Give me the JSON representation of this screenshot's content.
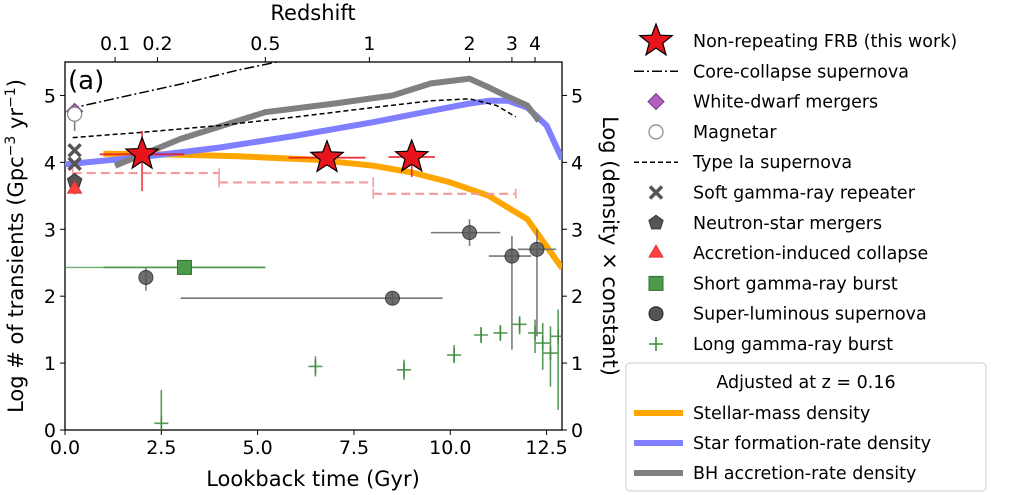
{
  "chart_data": {
    "type": "scatter",
    "panel_label": "(a)",
    "xlabel_bottom": "Lookback time (Gyr)",
    "xlabel_top": "Redshift",
    "ylabel_left": "Log # of transients (Gpc^-3 yr^-1)",
    "ylabel_right": "Log (density × constant)",
    "xlim": [
      0,
      12.9
    ],
    "ylim": [
      0,
      5.5
    ],
    "x_ticks": [
      0.0,
      2.5,
      5.0,
      7.5,
      10.0,
      12.5
    ],
    "x_tick_labels": [
      "0.0",
      "2.5",
      "5.0",
      "7.5",
      "10.0",
      "12.5"
    ],
    "y_ticks": [
      0,
      1,
      2,
      3,
      4,
      5
    ],
    "y_tick_labels": [
      "0",
      "1",
      "2",
      "3",
      "4",
      "5"
    ],
    "top_ticks": [
      {
        "label": "0.1",
        "lookback": 1.3
      },
      {
        "label": "0.2",
        "lookback": 2.4
      },
      {
        "label": "0.5",
        "lookback": 5.2
      },
      {
        "label": "1",
        "lookback": 7.9
      },
      {
        "label": "2",
        "lookback": 10.5
      },
      {
        "label": "3",
        "lookback": 11.6
      },
      {
        "label": "4",
        "lookback": 12.2
      }
    ],
    "legend_placement": "right, outside plot",
    "legend_title": "Adjusted at z = 0.16",
    "legend_entries": [
      {
        "key": "frb",
        "label": "Non-repeating FRB (this work)"
      },
      {
        "key": "ccsn",
        "label": "Core-collapse supernova"
      },
      {
        "key": "wd",
        "label": "White-dwarf mergers"
      },
      {
        "key": "mag",
        "label": "Magnetar"
      },
      {
        "key": "ia",
        "label": "Type Ia supernova"
      },
      {
        "key": "sgr",
        "label": "Soft gamma-ray repeater"
      },
      {
        "key": "ns",
        "label": "Neutron-star mergers"
      },
      {
        "key": "aic",
        "label": "Accretion-induced collapse"
      },
      {
        "key": "sgrb",
        "label": "Short gamma-ray burst"
      },
      {
        "key": "slsn",
        "label": "Super-luminous supernova"
      },
      {
        "key": "lgrb",
        "label": "Long gamma-ray burst"
      }
    ],
    "density_legend": [
      {
        "key": "smd",
        "label": "Stellar-mass density"
      },
      {
        "key": "sfrd",
        "label": "Star formation-rate density"
      },
      {
        "key": "bhard",
        "label": "BH accretion-rate density"
      }
    ],
    "colors": {
      "frb": "#e8141c",
      "smd": "#ffa500",
      "sfrd": "#7f7fff",
      "bhard": "#808080",
      "wd": "#b05fbf",
      "sgrb": "#4c9a4c",
      "slsn": "#555555",
      "lgrb": "#3a8a3a",
      "aic": "#ff5a5a",
      "frb_err": "#f49a9a"
    },
    "series": [
      {
        "name": "Stellar-mass density",
        "key": "smd",
        "kind": "line",
        "x": [
          1.0,
          2.5,
          4.5,
          6.5,
          8.0,
          9.0,
          10.0,
          11.0,
          12.0,
          12.9
        ],
        "y": [
          4.13,
          4.12,
          4.09,
          4.04,
          3.95,
          3.85,
          3.7,
          3.5,
          3.15,
          2.42
        ]
      },
      {
        "name": "Star formation-rate density",
        "key": "sfrd",
        "kind": "line",
        "x": [
          0.0,
          2.0,
          4.0,
          6.0,
          8.0,
          9.5,
          10.5,
          11.0,
          11.5,
          12.0,
          12.5,
          12.9
        ],
        "y": [
          3.97,
          4.08,
          4.22,
          4.4,
          4.6,
          4.77,
          4.88,
          4.92,
          4.92,
          4.82,
          4.55,
          4.05
        ]
      },
      {
        "name": "BH accretion-rate density",
        "key": "bhard",
        "kind": "line",
        "x": [
          1.3,
          3.0,
          5.2,
          7.0,
          8.5,
          9.5,
          10.5,
          11.0,
          11.5,
          12.0,
          12.3
        ],
        "y": [
          3.95,
          4.35,
          4.75,
          4.88,
          5.0,
          5.18,
          5.25,
          5.12,
          4.98,
          4.85,
          4.62
        ]
      },
      {
        "name": "Core-collapse supernova",
        "key": "ccsn",
        "kind": "dashdot",
        "x": [
          0.1,
          1.5,
          3.0,
          4.5,
          5.5
        ],
        "y": [
          4.8,
          4.98,
          5.17,
          5.38,
          5.5
        ]
      },
      {
        "name": "Type Ia supernova",
        "key": "ia",
        "kind": "dashed",
        "x": [
          0.2,
          2.0,
          4.0,
          6.0,
          8.0,
          9.5,
          10.5,
          11.2,
          11.7
        ],
        "y": [
          4.37,
          4.45,
          4.55,
          4.68,
          4.82,
          4.92,
          4.95,
          4.85,
          4.68
        ]
      },
      {
        "name": "Non-repeating FRB (this work)",
        "key": "frb",
        "kind": "star",
        "points": [
          {
            "x": 2.0,
            "y": 4.12,
            "xerr": 1.1,
            "yerr": [
              0.55,
              0.35
            ]
          },
          {
            "x": 6.8,
            "y": 4.07,
            "xerr": 1.0,
            "yerr": [
              0.12,
              0.12
            ]
          },
          {
            "x": 9.0,
            "y": 4.08,
            "xerr": 0.6,
            "yerr": [
              0.3,
              0.25
            ]
          }
        ]
      },
      {
        "name": "Non-repeating FRB lower limits",
        "key": "frb_err",
        "kind": "hdash",
        "points": [
          {
            "x1": 0.2,
            "x2": 4.0,
            "y": 3.84
          },
          {
            "x1": 4.0,
            "x2": 8.0,
            "y": 3.7
          },
          {
            "x1": 8.0,
            "x2": 11.7,
            "y": 3.53
          }
        ]
      },
      {
        "name": "White-dwarf mergers",
        "key": "wd",
        "kind": "diamond",
        "points": [
          {
            "x": 0.25,
            "y": 4.76
          }
        ]
      },
      {
        "name": "Magnetar",
        "key": "mag",
        "kind": "open-circle",
        "points": [
          {
            "x": 0.25,
            "y": 4.72,
            "yerr": [
              0.25,
              0.0
            ]
          }
        ]
      },
      {
        "name": "Soft gamma-ray repeater",
        "key": "sgr",
        "kind": "x",
        "points": [
          {
            "x": 0.25,
            "y": 4.18
          },
          {
            "x": 0.25,
            "y": 3.98
          }
        ]
      },
      {
        "name": "Neutron-star mergers",
        "key": "ns",
        "kind": "pentagon",
        "points": [
          {
            "x": 0.25,
            "y": 3.72,
            "yerr": [
              0.2,
              0.12
            ]
          }
        ]
      },
      {
        "name": "Accretion-induced collapse",
        "key": "aic",
        "kind": "triangle",
        "points": [
          {
            "x": 0.25,
            "y": 3.6
          }
        ]
      },
      {
        "name": "Short gamma-ray burst",
        "key": "sgrb",
        "kind": "square",
        "points": [
          {
            "x": 3.1,
            "y": 2.43,
            "xerr": 2.1
          }
        ],
        "extra_segments": [
          {
            "x1": 0.0,
            "x2": 5.2,
            "y": 2.43
          }
        ]
      },
      {
        "name": "Super-luminous supernova",
        "key": "slsn",
        "kind": "circle",
        "points": [
          {
            "x": 2.1,
            "y": 2.28,
            "yerr": [
              0.2,
              0.15
            ],
            "xerr": 0.0
          },
          {
            "x": 8.5,
            "y": 1.97,
            "xerr1": 5.5,
            "xerr2": 1.3,
            "yerr": [
              0.1,
              0.1
            ]
          },
          {
            "x": 10.5,
            "y": 2.95,
            "xerr1": 1.0,
            "xerr2": 0.8,
            "yerr": [
              0.2,
              0.2
            ]
          },
          {
            "x": 11.6,
            "y": 2.6,
            "xerr1": 0.6,
            "xerr2": 0.5,
            "yerr": [
              1.4,
              0.3
            ]
          },
          {
            "x": 12.25,
            "y": 2.7,
            "xerr1": 0.5,
            "xerr2": 0.5,
            "yerr": [
              1.3,
              0.3
            ]
          }
        ]
      },
      {
        "name": "Long gamma-ray burst",
        "key": "lgrb",
        "kind": "plus",
        "points": [
          {
            "x": 2.5,
            "y": 0.1,
            "yerr": [
              0.1,
              0.5
            ]
          },
          {
            "x": 6.5,
            "y": 0.95,
            "yerr": [
              0.15,
              0.15
            ]
          },
          {
            "x": 8.8,
            "y": 0.9,
            "yerr": [
              0.15,
              0.15
            ]
          },
          {
            "x": 10.1,
            "y": 1.12,
            "yerr": [
              0.12,
              0.15
            ]
          },
          {
            "x": 10.8,
            "y": 1.42,
            "yerr": [
              0.12,
              0.12
            ]
          },
          {
            "x": 11.3,
            "y": 1.45,
            "yerr": [
              0.12,
              0.12
            ]
          },
          {
            "x": 11.8,
            "y": 1.58,
            "yerr": [
              0.15,
              0.12
            ]
          },
          {
            "x": 12.2,
            "y": 1.45,
            "yerr": [
              0.3,
              0.2
            ]
          },
          {
            "x": 12.4,
            "y": 1.3,
            "yerr": [
              0.4,
              0.3
            ]
          },
          {
            "x": 12.6,
            "y": 1.15,
            "yerr": [
              0.5,
              0.4
            ]
          },
          {
            "x": 12.8,
            "y": 1.4,
            "yerr": [
              1.1,
              0.4
            ]
          }
        ]
      }
    ]
  }
}
